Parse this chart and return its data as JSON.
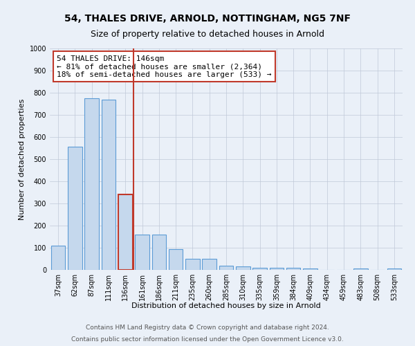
{
  "title_line1": "54, THALES DRIVE, ARNOLD, NOTTINGHAM, NG5 7NF",
  "title_line2": "Size of property relative to detached houses in Arnold",
  "xlabel": "Distribution of detached houses by size in Arnold",
  "ylabel": "Number of detached properties",
  "bar_color": "#c5d8ed",
  "bar_edge_color": "#5b9bd5",
  "background_color": "#eaf0f8",
  "categories": [
    "37sqm",
    "62sqm",
    "87sqm",
    "111sqm",
    "136sqm",
    "161sqm",
    "186sqm",
    "211sqm",
    "235sqm",
    "260sqm",
    "285sqm",
    "310sqm",
    "335sqm",
    "359sqm",
    "384sqm",
    "409sqm",
    "434sqm",
    "459sqm",
    "483sqm",
    "508sqm",
    "533sqm"
  ],
  "values": [
    110,
    555,
    775,
    770,
    340,
    160,
    160,
    95,
    50,
    50,
    20,
    15,
    10,
    10,
    10,
    5,
    0,
    0,
    5,
    0,
    5
  ],
  "highlight_index": 4,
  "highlight_edge_color": "#c0392b",
  "vline_color": "#c0392b",
  "ylim": [
    0,
    1000
  ],
  "yticks": [
    0,
    100,
    200,
    300,
    400,
    500,
    600,
    700,
    800,
    900,
    1000
  ],
  "annotation_text": "54 THALES DRIVE: 146sqm\n← 81% of detached houses are smaller (2,364)\n18% of semi-detached houses are larger (533) →",
  "annotation_box_color": "#ffffff",
  "annotation_border_color": "#c0392b",
  "footer_line1": "Contains HM Land Registry data © Crown copyright and database right 2024.",
  "footer_line2": "Contains public sector information licensed under the Open Government Licence v3.0.",
  "title_fontsize": 10,
  "subtitle_fontsize": 9,
  "axis_label_fontsize": 8,
  "tick_fontsize": 7,
  "annotation_fontsize": 8,
  "footer_fontsize": 6.5
}
